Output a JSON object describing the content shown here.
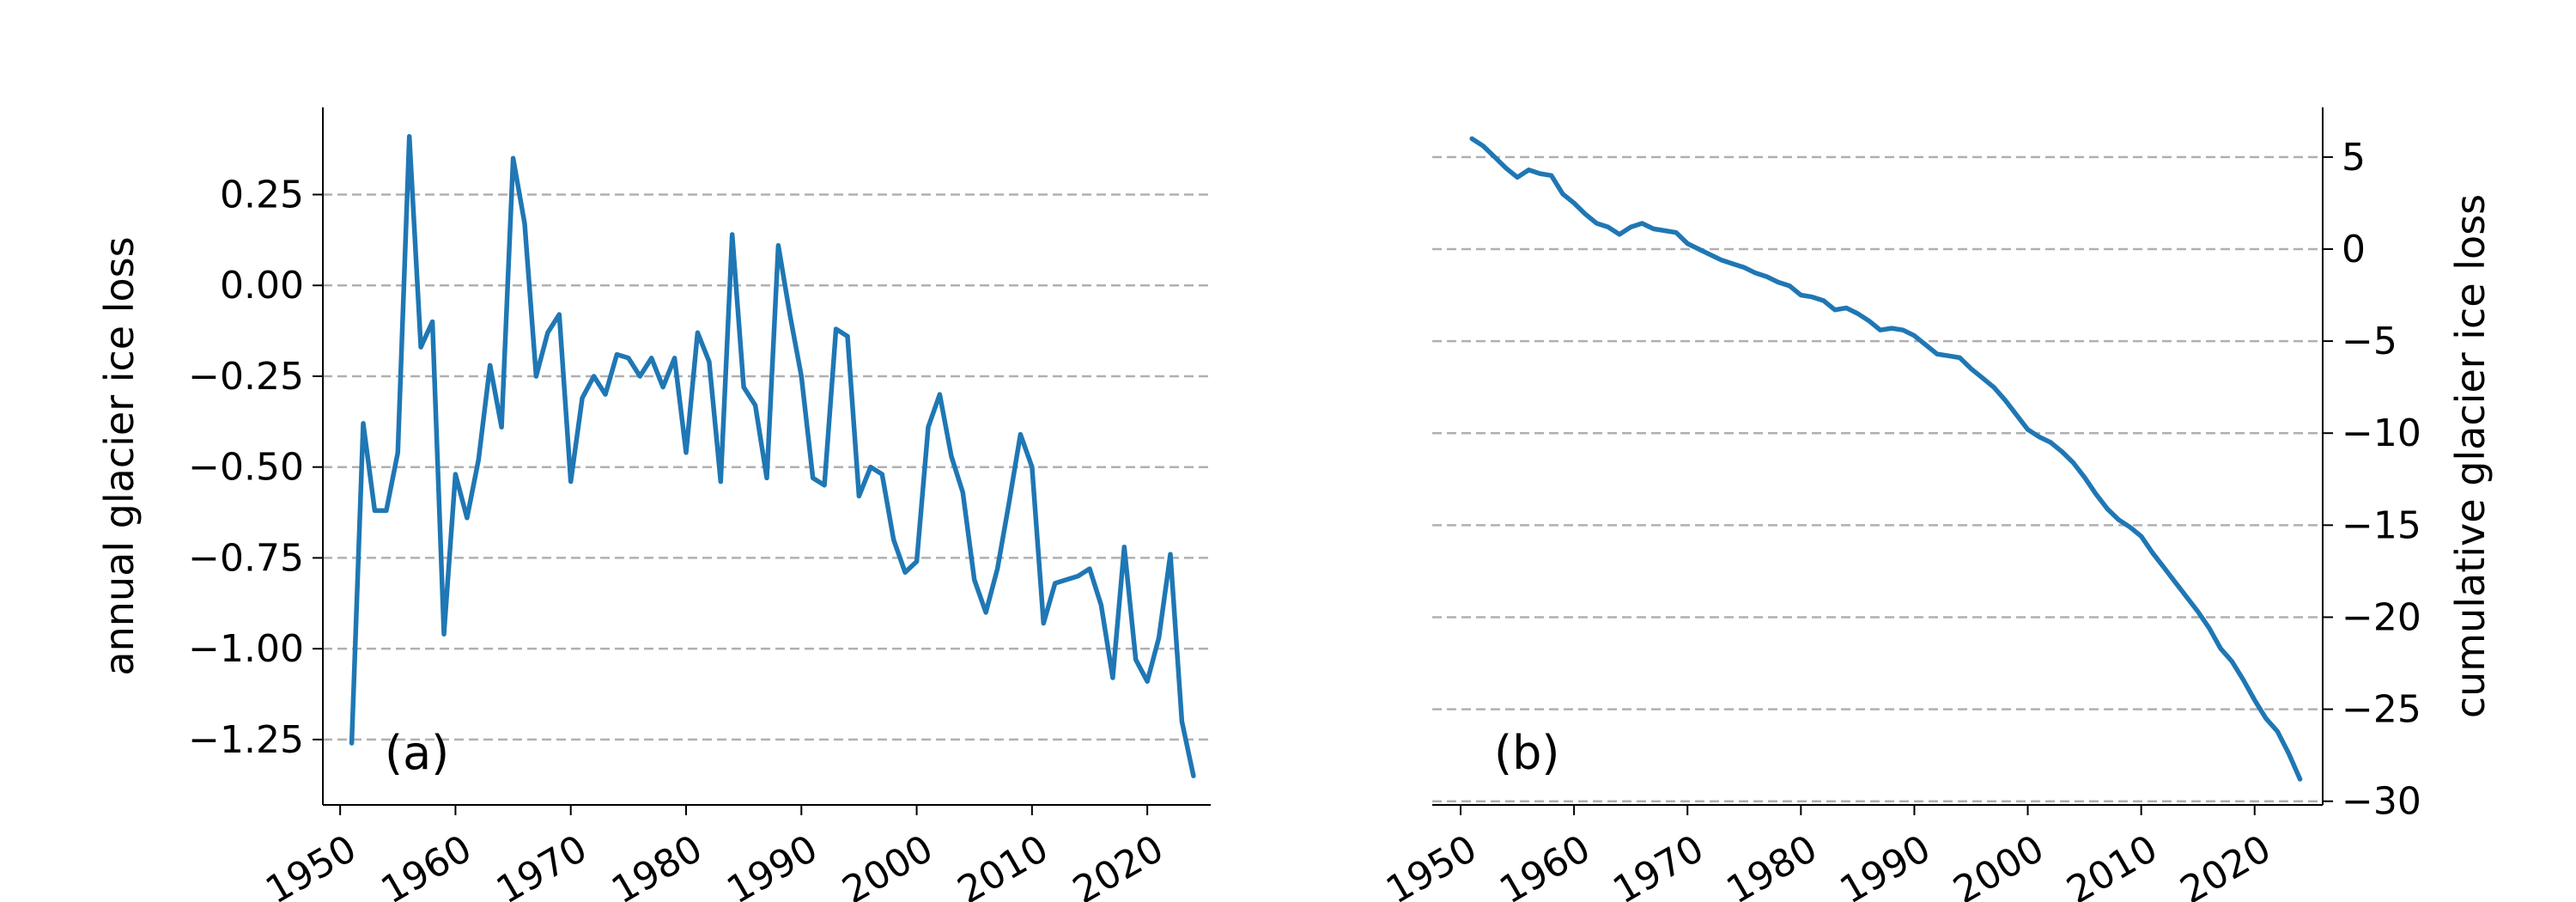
{
  "chart_data": [
    {
      "type": "line",
      "panel_label": "(a)",
      "ylabel": "annual glacier ice loss",
      "xlabel": "",
      "xlim": [
        1948.5,
        2025.5
      ],
      "ylim": [
        -1.43,
        0.49
      ],
      "xticks": [
        1950,
        1960,
        1970,
        1980,
        1990,
        2000,
        2010,
        2020
      ],
      "yticks": [
        0.25,
        0.0,
        -0.25,
        -0.5,
        -0.75,
        -1.0,
        -1.25
      ],
      "ytick_labels": [
        "0.25",
        "0.00",
        "−0.25",
        "−0.50",
        "−0.75",
        "−1.00",
        "−1.25"
      ],
      "grid": "horizontal dashed",
      "y_axis_side": "left",
      "series": [
        {
          "color": "#1f77b4",
          "x": [
            1951,
            1952,
            1953,
            1954,
            1955,
            1956,
            1957,
            1958,
            1959,
            1960,
            1961,
            1962,
            1963,
            1964,
            1965,
            1966,
            1967,
            1968,
            1969,
            1970,
            1971,
            1972,
            1973,
            1974,
            1975,
            1976,
            1977,
            1978,
            1979,
            1980,
            1981,
            1982,
            1983,
            1984,
            1985,
            1986,
            1987,
            1988,
            1989,
            1990,
            1991,
            1992,
            1993,
            1994,
            1995,
            1996,
            1997,
            1998,
            1999,
            2000,
            2001,
            2002,
            2003,
            2004,
            2005,
            2006,
            2007,
            2008,
            2009,
            2010,
            2011,
            2012,
            2013,
            2014,
            2015,
            2016,
            2017,
            2018,
            2019,
            2020,
            2021,
            2022,
            2023,
            2024
          ],
          "y": [
            -1.26,
            -0.38,
            -0.62,
            -0.62,
            -0.46,
            0.41,
            -0.17,
            -0.1,
            -0.96,
            -0.52,
            -0.64,
            -0.48,
            -0.22,
            -0.39,
            0.35,
            0.17,
            -0.25,
            -0.13,
            -0.08,
            -0.54,
            -0.31,
            -0.25,
            -0.3,
            -0.19,
            -0.2,
            -0.25,
            -0.2,
            -0.28,
            -0.2,
            -0.46,
            -0.13,
            -0.21,
            -0.54,
            0.14,
            -0.28,
            -0.33,
            -0.53,
            0.11,
            -0.08,
            -0.25,
            -0.53,
            -0.55,
            -0.12,
            -0.14,
            -0.58,
            -0.5,
            -0.52,
            -0.7,
            -0.79,
            -0.76,
            -0.39,
            -0.3,
            -0.47,
            -0.57,
            -0.81,
            -0.9,
            -0.78,
            -0.6,
            -0.41,
            -0.5,
            -0.93,
            -0.82,
            -0.81,
            -0.8,
            -0.78,
            -0.88,
            -1.08,
            -0.72,
            -1.03,
            -1.09,
            -0.97,
            -0.74,
            -1.2,
            -1.35
          ]
        }
      ]
    },
    {
      "type": "line",
      "panel_label": "(b)",
      "ylabel": "cumulative glacier ice loss",
      "xlabel": "",
      "xlim": [
        1947.5,
        2026
      ],
      "ylim": [
        -30.2,
        7.7
      ],
      "xticks": [
        1950,
        1960,
        1970,
        1980,
        1990,
        2000,
        2010,
        2020
      ],
      "yticks": [
        5,
        0,
        -5,
        -10,
        -15,
        -20,
        -25,
        -30
      ],
      "ytick_labels": [
        "5",
        "0",
        "−5",
        "−10",
        "−15",
        "−20",
        "−25",
        "−30"
      ],
      "grid": "horizontal dashed",
      "y_axis_side": "right",
      "series": [
        {
          "color": "#1f77b4",
          "x": [
            1951,
            1952,
            1953,
            1954,
            1955,
            1956,
            1957,
            1958,
            1959,
            1960,
            1961,
            1962,
            1963,
            1964,
            1965,
            1966,
            1967,
            1968,
            1969,
            1970,
            1971,
            1972,
            1973,
            1974,
            1975,
            1976,
            1977,
            1978,
            1979,
            1980,
            1981,
            1982,
            1983,
            1984,
            1985,
            1986,
            1987,
            1988,
            1989,
            1990,
            1991,
            1992,
            1993,
            1994,
            1995,
            1996,
            1997,
            1998,
            1999,
            2000,
            2001,
            2002,
            2003,
            2004,
            2005,
            2006,
            2007,
            2008,
            2009,
            2010,
            2011,
            2012,
            2013,
            2014,
            2015,
            2016,
            2017,
            2018,
            2019,
            2020,
            2021,
            2022,
            2023,
            2024
          ],
          "y": [
            6.0,
            5.6,
            5.0,
            4.4,
            3.9,
            4.3,
            4.1,
            4.0,
            3.0,
            2.5,
            1.9,
            1.4,
            1.2,
            0.8,
            1.2,
            1.4,
            1.1,
            1.0,
            0.9,
            0.3,
            0.0,
            -0.3,
            -0.6,
            -0.8,
            -1.0,
            -1.3,
            -1.5,
            -1.8,
            -2.0,
            -2.5,
            -2.6,
            -2.8,
            -3.3,
            -3.2,
            -3.5,
            -3.9,
            -4.4,
            -4.3,
            -4.4,
            -4.7,
            -5.2,
            -5.7,
            -5.8,
            -5.9,
            -6.5,
            -7.0,
            -7.5,
            -8.2,
            -9.0,
            -9.8,
            -10.2,
            -10.5,
            -11.0,
            -11.6,
            -12.4,
            -13.3,
            -14.1,
            -14.7,
            -15.1,
            -15.6,
            -16.5,
            -17.3,
            -18.1,
            -18.9,
            -19.7,
            -20.6,
            -21.7,
            -22.4,
            -23.4,
            -24.5,
            -25.5,
            -26.2,
            -27.4,
            -28.8
          ]
        }
      ]
    }
  ]
}
